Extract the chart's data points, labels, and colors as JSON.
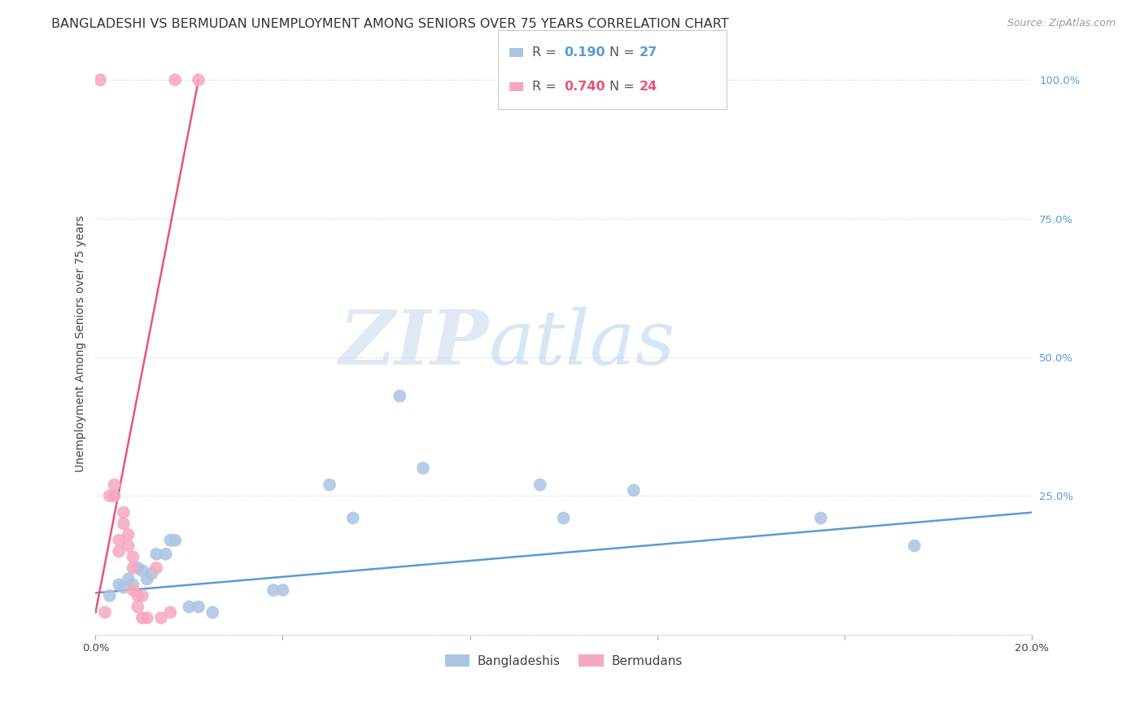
{
  "title": "BANGLADESHI VS BERMUDAN UNEMPLOYMENT AMONG SENIORS OVER 75 YEARS CORRELATION CHART",
  "source": "Source: ZipAtlas.com",
  "ylabel": "Unemployment Among Seniors over 75 years",
  "xlim": [
    0.0,
    0.2
  ],
  "ylim": [
    0.0,
    1.05
  ],
  "xticks": [
    0.0,
    0.04,
    0.08,
    0.12,
    0.16,
    0.2
  ],
  "xtick_labels": [
    "0.0%",
    "",
    "",
    "",
    "",
    "20.0%"
  ],
  "yticks": [
    0.0,
    0.25,
    0.5,
    0.75,
    1.0
  ],
  "ytick_labels_right": [
    "",
    "25.0%",
    "50.0%",
    "75.0%",
    "100.0%"
  ],
  "bg_color": "#ffffff",
  "watermark_zip": "ZIP",
  "watermark_atlas": "atlas",
  "legend_r1_label": "R = ",
  "legend_r1_val": "0.190",
  "legend_n1_label": "N = ",
  "legend_n1_val": "27",
  "legend_r2_label": "R = ",
  "legend_r2_val": "0.740",
  "legend_n2_label": "N = ",
  "legend_n2_val": "24",
  "blue_color": "#aac4e2",
  "pink_color": "#f5a8bf",
  "blue_line_color": "#5b9bd5",
  "pink_line_color": "#e8547a",
  "blue_scatter_x": [
    0.003,
    0.005,
    0.006,
    0.007,
    0.008,
    0.009,
    0.01,
    0.011,
    0.012,
    0.013,
    0.015,
    0.016,
    0.017,
    0.02,
    0.022,
    0.025,
    0.038,
    0.04,
    0.05,
    0.055,
    0.065,
    0.07,
    0.095,
    0.1,
    0.115,
    0.155,
    0.175
  ],
  "blue_scatter_y": [
    0.07,
    0.09,
    0.085,
    0.1,
    0.09,
    0.12,
    0.115,
    0.1,
    0.11,
    0.145,
    0.145,
    0.17,
    0.17,
    0.05,
    0.05,
    0.04,
    0.08,
    0.08,
    0.27,
    0.21,
    0.43,
    0.3,
    0.27,
    0.21,
    0.26,
    0.21,
    0.16
  ],
  "pink_scatter_x": [
    0.001,
    0.002,
    0.003,
    0.004,
    0.004,
    0.005,
    0.005,
    0.006,
    0.006,
    0.007,
    0.007,
    0.008,
    0.008,
    0.008,
    0.009,
    0.009,
    0.01,
    0.01,
    0.011,
    0.013,
    0.014,
    0.016,
    0.017,
    0.022
  ],
  "pink_scatter_y": [
    1.0,
    0.04,
    0.25,
    0.27,
    0.25,
    0.17,
    0.15,
    0.2,
    0.22,
    0.18,
    0.16,
    0.12,
    0.14,
    0.08,
    0.05,
    0.07,
    0.07,
    0.03,
    0.03,
    0.12,
    0.03,
    0.04,
    1.0,
    1.0
  ],
  "blue_line_x": [
    0.0,
    0.2
  ],
  "blue_line_y": [
    0.075,
    0.22
  ],
  "pink_line_x": [
    0.0,
    0.022
  ],
  "pink_line_y": [
    0.04,
    1.0
  ],
  "legend_label1": "Bangladeshis",
  "legend_label2": "Bermudans",
  "title_fontsize": 11.5,
  "axis_fontsize": 10,
  "tick_fontsize": 9.5,
  "source_fontsize": 9
}
